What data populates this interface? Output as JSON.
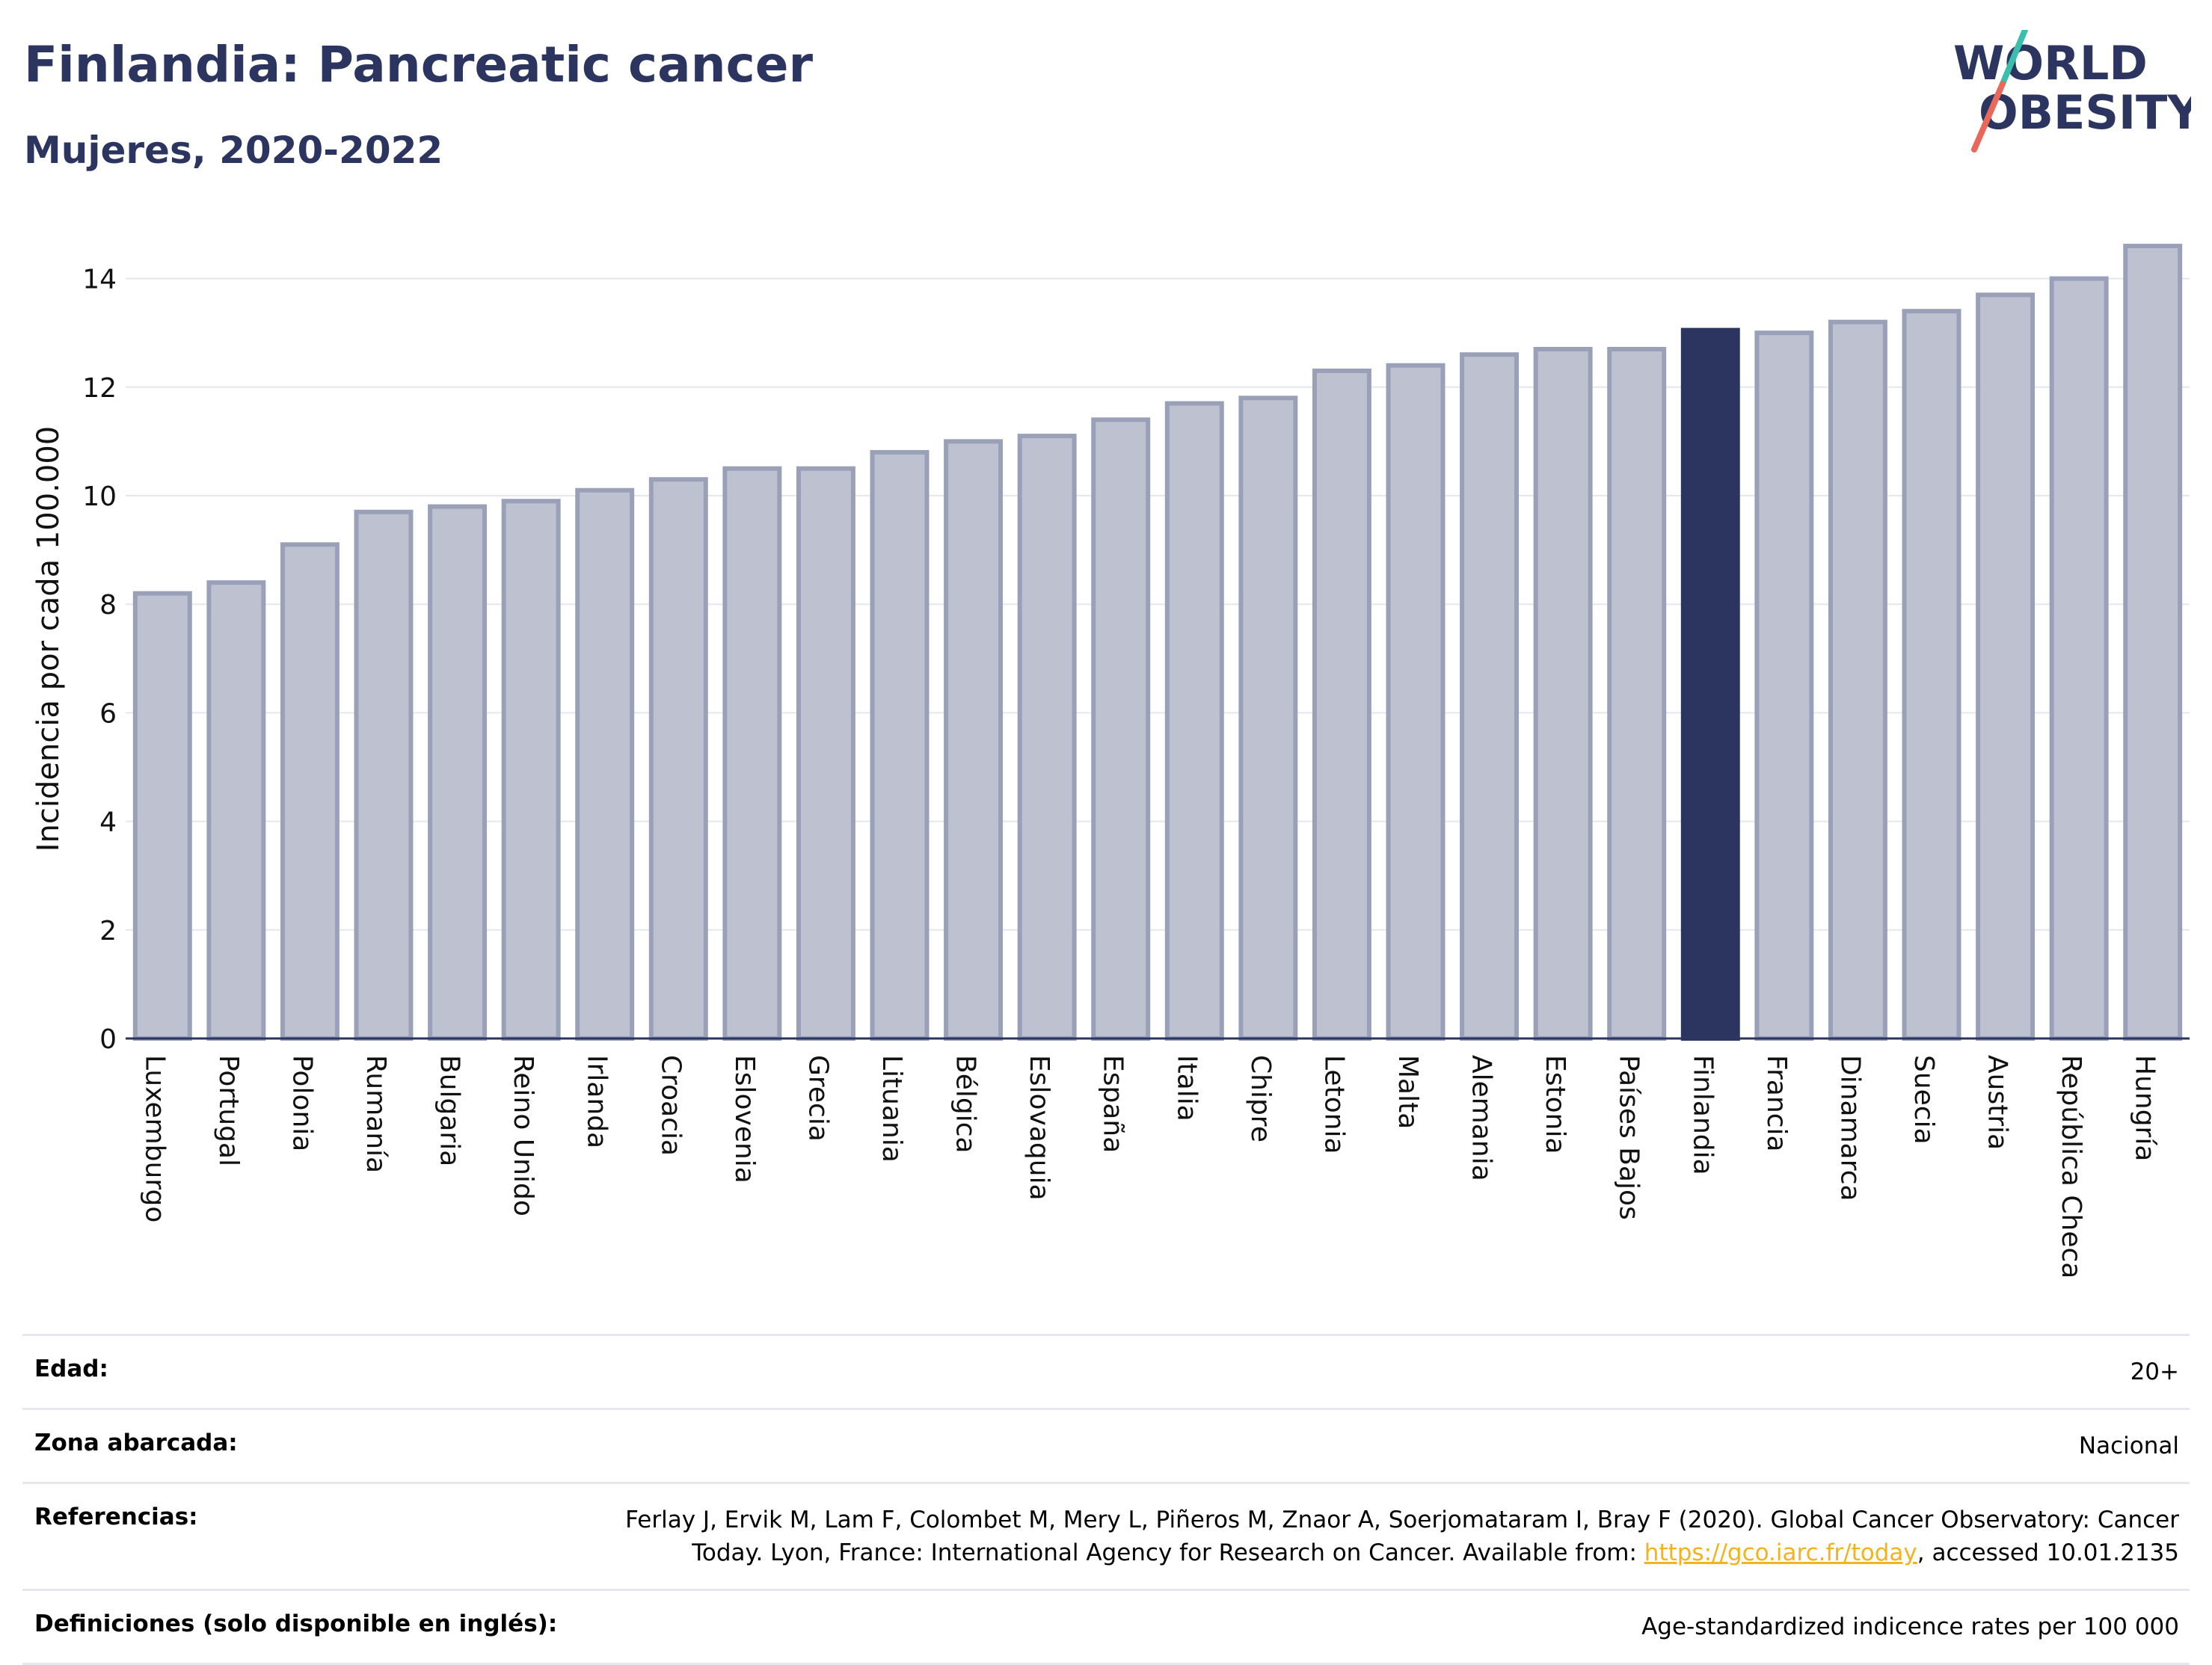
{
  "header": {
    "title": "Finlandia: Pancreatic cancer",
    "subtitle": "Mujeres, 2020-2022"
  },
  "logo": {
    "line1": "WORLD",
    "line2": "OBESITY",
    "colors": {
      "text": "#2b355f",
      "slash_top": "#3bbfad",
      "slash_bottom": "#e8685a"
    }
  },
  "colors": {
    "bar": "#bec2d0",
    "bar_stroke": "#9aa0b8",
    "highlight": "#2b355f",
    "grid": "#e5e7ee",
    "axis": "#2b355f"
  },
  "chart_data": {
    "type": "bar",
    "title": "",
    "xlabel": "",
    "ylabel": "Incidencia por cada 100.000",
    "ylim": [
      0,
      15
    ],
    "yticks": [
      0,
      2,
      4,
      6,
      8,
      10,
      12,
      14
    ],
    "grid": true,
    "highlight": "Finlandia",
    "categories": [
      "Luxemburgo",
      "Portugal",
      "Polonia",
      "Rumanía",
      "Bulgaria",
      "Reino Unido",
      "Irlanda",
      "Croacia",
      "Eslovenia",
      "Grecia",
      "Lituania",
      "Bélgica",
      "Eslovaquia",
      "España",
      "Italia",
      "Chipre",
      "Letonia",
      "Malta",
      "Alemania",
      "Estonia",
      "Países Bajos",
      "Finlandia",
      "Francia",
      "Dinamarca",
      "Suecia",
      "Austria",
      "República Checa",
      "Hungría"
    ],
    "values": [
      8.2,
      8.4,
      9.1,
      9.7,
      9.8,
      9.9,
      10.1,
      10.3,
      10.5,
      10.5,
      10.8,
      11.0,
      11.1,
      11.4,
      11.7,
      11.8,
      12.3,
      12.4,
      12.6,
      12.7,
      12.7,
      13.05,
      13.0,
      13.2,
      13.4,
      13.7,
      14.0,
      14.6
    ]
  },
  "meta": {
    "rows": [
      {
        "label": "Edad:",
        "value": "20+"
      },
      {
        "label": "Zona abarcada:",
        "value": "Nacional"
      },
      {
        "label": "Referencias:",
        "value_pre": "Ferlay J, Ervik M, Lam F, Colombet M, Mery L, Piñeros M, Znaor A, Soerjomataram I, Bray F (2020). Global Cancer Observatory: Cancer Today. Lyon, France: International Agency for Research on Cancer. Available from: ",
        "link": "https://gco.iarc.fr/today",
        "value_post": ", accessed 10.01.2135"
      },
      {
        "label": "Definiciones (solo disponible en inglés):",
        "value": "Age-standardized indicence rates per 100 000"
      }
    ]
  }
}
